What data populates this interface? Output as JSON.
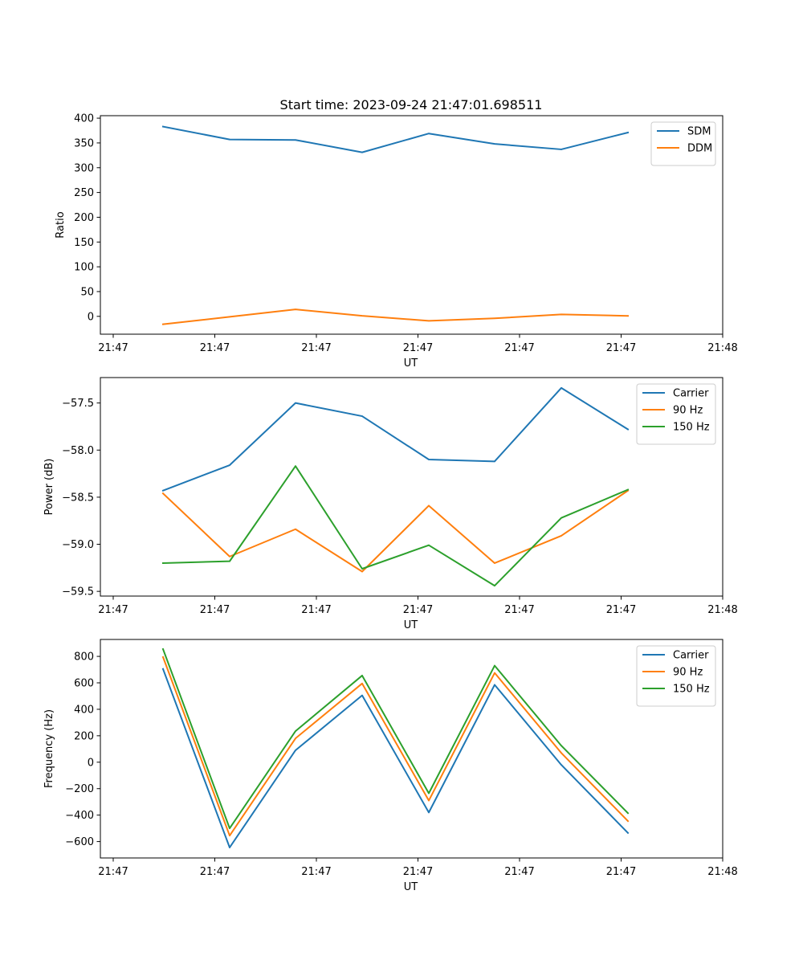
{
  "title": "Start time: 2023-09-24 21:47:01.698511",
  "chart_data": [
    {
      "type": "line",
      "xlabel": "UT",
      "ylabel": "Ratio",
      "x_tick_labels": [
        "21:47",
        "21:47",
        "21:47",
        "21:47",
        "21:47",
        "21:47",
        "21:48"
      ],
      "y_ticks": [
        0,
        50,
        100,
        150,
        200,
        250,
        300,
        350,
        400
      ],
      "ylim": [
        -36,
        405
      ],
      "legend_position": "top-right",
      "series": [
        {
          "name": "SDM",
          "color": "#1f77b4",
          "values": [
            383,
            357,
            356,
            331,
            369,
            348,
            337,
            371
          ]
        },
        {
          "name": "DDM",
          "color": "#ff7f0e",
          "values": [
            -16,
            -1,
            14,
            1,
            -9,
            -4,
            4,
            1
          ]
        }
      ]
    },
    {
      "type": "line",
      "xlabel": "UT",
      "ylabel": "Power (dB)",
      "x_tick_labels": [
        "21:47",
        "21:47",
        "21:47",
        "21:47",
        "21:47",
        "21:47",
        "21:48"
      ],
      "y_ticks": [
        -59.5,
        -59.0,
        -58.5,
        -58.0,
        -57.5
      ],
      "y_tick_labels": [
        "−59.5",
        "−59.0",
        "−58.5",
        "−58.0",
        "−57.5"
      ],
      "ylim": [
        -59.55,
        -57.23
      ],
      "legend_position": "top-right",
      "series": [
        {
          "name": "Carrier",
          "color": "#1f77b4",
          "values": [
            -58.43,
            -58.16,
            -57.5,
            -57.64,
            -58.1,
            -58.12,
            -57.34,
            -57.78
          ]
        },
        {
          "name": "90 Hz",
          "color": "#ff7f0e",
          "values": [
            -58.46,
            -59.13,
            -58.84,
            -59.29,
            -58.59,
            -59.2,
            -58.91,
            -58.43
          ]
        },
        {
          "name": "150 Hz",
          "color": "#2ca02c",
          "values": [
            -59.2,
            -59.18,
            -58.17,
            -59.26,
            -59.01,
            -59.44,
            -58.72,
            -58.42
          ]
        }
      ]
    },
    {
      "type": "line",
      "xlabel": "UT",
      "ylabel": "Frequency (Hz)",
      "x_tick_labels": [
        "21:47",
        "21:47",
        "21:47",
        "21:47",
        "21:47",
        "21:47",
        "21:48"
      ],
      "y_ticks": [
        -600,
        -400,
        -200,
        0,
        200,
        400,
        600,
        800
      ],
      "y_tick_labels": [
        "−600",
        "−400",
        "−200",
        "0",
        "200",
        "400",
        "600",
        "800"
      ],
      "ylim": [
        -724,
        928
      ],
      "legend_position": "top-right",
      "series": [
        {
          "name": "Carrier",
          "color": "#1f77b4",
          "values": [
            705,
            -645,
            90,
            505,
            -380,
            585,
            -20,
            -535
          ]
        },
        {
          "name": "90 Hz",
          "color": "#ff7f0e",
          "values": [
            795,
            -555,
            180,
            595,
            -290,
            675,
            70,
            -445
          ]
        },
        {
          "name": "150 Hz",
          "color": "#2ca02c",
          "values": [
            855,
            -500,
            235,
            655,
            -235,
            730,
            125,
            -385
          ]
        }
      ]
    }
  ]
}
